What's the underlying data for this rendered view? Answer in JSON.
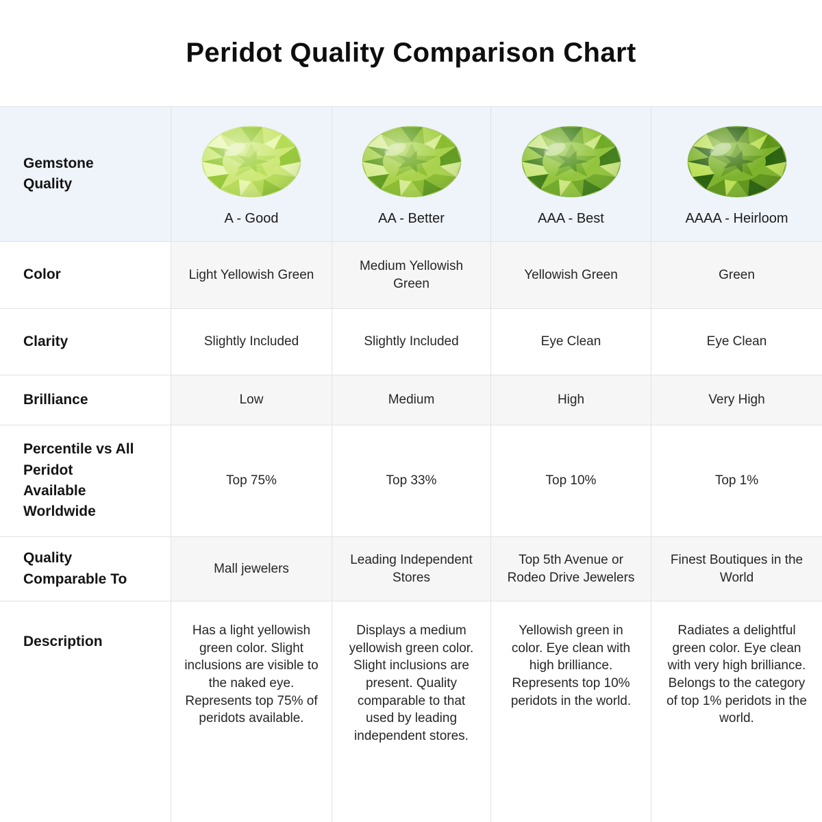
{
  "title": "Peridot Quality Comparison Chart",
  "chart_data": {
    "type": "table",
    "title": "Peridot Quality Comparison Chart",
    "row_headers": [
      "Gemstone Quality",
      "Color",
      "Clarity",
      "Brilliance",
      "Percentile vs All\nPeridot\nAvailable\nWorldwide",
      "Quality Comparable To",
      "Description"
    ],
    "columns": [
      {
        "grade": "A - Good",
        "color": "Light Yellowish Green",
        "clarity": "Slightly Included",
        "brilliance": "Low",
        "percentile": "Top 75%",
        "comparable": "Mall jewelers",
        "description": "Has a light yellowish green color. Slight inclusions are visible to the naked eye. Represents top 75% of peridots available.",
        "gem": {
          "base": "#cde878",
          "light": "#e8f7b0",
          "mid": "#b5dc55",
          "dark": "#96c838"
        }
      },
      {
        "grade": "AA - Better",
        "color": "Medium Yellowish Green",
        "clarity": "Slightly Included",
        "brilliance": "Medium",
        "percentile": "Top 33%",
        "comparable": "Leading Independent Stores",
        "description": "Displays a medium yellowish green color. Slight inclusions are present. Quality comparable to that used by leading independent stores.",
        "gem": {
          "base": "#a9d24c",
          "light": "#d6ec92",
          "mid": "#8abc2e",
          "dark": "#5f9b1e"
        }
      },
      {
        "grade": "AAA - Best",
        "color": "Yellowish Green",
        "clarity": "Eye Clean",
        "brilliance": "High",
        "percentile": "Top 10%",
        "comparable": "Top 5th Avenue or Rodeo Drive Jewelers",
        "description": "Yellowish green in color. Eye clean with high brilliance. Represents top 10% peridots in the world.",
        "gem": {
          "base": "#92c43c",
          "light": "#cbe77f",
          "mid": "#6faa26",
          "dark": "#3f7d18"
        }
      },
      {
        "grade": "AAAA - Heirloom",
        "color": "Green",
        "clarity": "Eye Clean",
        "brilliance": "Very High",
        "percentile": "Top 1%",
        "comparable": "Finest Boutiques in the World",
        "description": "Radiates a delightful green color. Eye clean with very high brilliance. Belongs to the category of top 1% peridots in the world.",
        "gem": {
          "base": "#7cb22b",
          "light": "#bcdf55",
          "mid": "#5d9417",
          "dark": "#275f0b"
        }
      }
    ],
    "styles": {
      "header_row_bg": "#eff3fa",
      "striped_cell_bg": "#f6f6f6",
      "border_color": "#e2e2e2",
      "title_color": "#0e0e0e"
    }
  }
}
